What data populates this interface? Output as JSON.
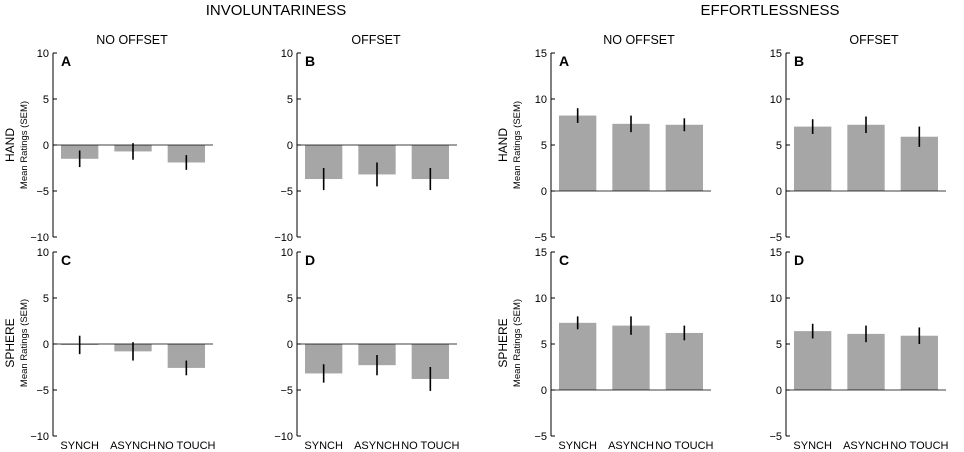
{
  "sections": [
    {
      "title": "INVOLUNTARINESS"
    },
    {
      "title": "EFFORTLESSNESS"
    }
  ],
  "column_labels": [
    "NO OFFSET",
    "OFFSET",
    "NO OFFSET",
    "OFFSET"
  ],
  "row_labels": [
    "HAND",
    "SPHERE"
  ],
  "ylabel": "Mean Ratings (SEM)",
  "chart_data": [
    {
      "type": "bar",
      "section": "INVOLUNTARINESS",
      "column": "NO OFFSET",
      "row": "HAND",
      "letter": "A",
      "categories": [
        "SYNCH",
        "ASYNCH",
        "NO TOUCH"
      ],
      "values": [
        -1.5,
        -0.7,
        -1.9
      ],
      "errors": [
        0.9,
        0.9,
        0.8
      ],
      "ylim": [
        -10,
        10
      ],
      "yticks": [
        -10,
        -5,
        0,
        5,
        10
      ],
      "show_xticklabels": false
    },
    {
      "type": "bar",
      "section": "INVOLUNTARINESS",
      "column": "OFFSET",
      "row": "HAND",
      "letter": "B",
      "categories": [
        "SYNCH",
        "ASYNCH",
        "NO TOUCH"
      ],
      "values": [
        -3.7,
        -3.2,
        -3.7
      ],
      "errors": [
        1.2,
        1.3,
        1.2
      ],
      "ylim": [
        -10,
        10
      ],
      "yticks": [
        -10,
        -5,
        0,
        5,
        10
      ],
      "show_xticklabels": false
    },
    {
      "type": "bar",
      "section": "EFFORTLESSNESS",
      "column": "NO OFFSET",
      "row": "HAND",
      "letter": "A",
      "categories": [
        "SYNCH",
        "ASYNCH",
        "NO TOUCH"
      ],
      "values": [
        8.2,
        7.3,
        7.2
      ],
      "errors": [
        0.8,
        0.9,
        0.7
      ],
      "ylim": [
        -5,
        15
      ],
      "yticks": [
        -5,
        0,
        5,
        10,
        15
      ],
      "show_xticklabels": false
    },
    {
      "type": "bar",
      "section": "EFFORTLESSNESS",
      "column": "OFFSET",
      "row": "HAND",
      "letter": "B",
      "categories": [
        "SYNCH",
        "ASYNCH",
        "NO TOUCH"
      ],
      "values": [
        7.0,
        7.2,
        5.9
      ],
      "errors": [
        0.8,
        0.9,
        1.1
      ],
      "ylim": [
        -5,
        15
      ],
      "yticks": [
        -5,
        0,
        5,
        10,
        15
      ],
      "show_xticklabels": false
    },
    {
      "type": "bar",
      "section": "INVOLUNTARINESS",
      "column": "NO OFFSET",
      "row": "SPHERE",
      "letter": "C",
      "categories": [
        "SYNCH",
        "ASYNCH",
        "NO TOUCH"
      ],
      "values": [
        -0.1,
        -0.8,
        -2.6
      ],
      "errors": [
        1.0,
        1.0,
        0.8
      ],
      "ylim": [
        -10,
        10
      ],
      "yticks": [
        -10,
        -5,
        0,
        5,
        10
      ],
      "show_xticklabels": true
    },
    {
      "type": "bar",
      "section": "INVOLUNTARINESS",
      "column": "OFFSET",
      "row": "SPHERE",
      "letter": "D",
      "categories": [
        "SYNCH",
        "ASYNCH",
        "NO TOUCH"
      ],
      "values": [
        -3.2,
        -2.3,
        -3.8
      ],
      "errors": [
        1.0,
        1.1,
        1.3
      ],
      "ylim": [
        -10,
        10
      ],
      "yticks": [
        -10,
        -5,
        0,
        5,
        10
      ],
      "show_xticklabels": true
    },
    {
      "type": "bar",
      "section": "EFFORTLESSNESS",
      "column": "NO OFFSET",
      "row": "SPHERE",
      "letter": "C",
      "categories": [
        "SYNCH",
        "ASYNCH",
        "NO TOUCH"
      ],
      "values": [
        7.3,
        7.0,
        6.2
      ],
      "errors": [
        0.7,
        1.0,
        0.8
      ],
      "ylim": [
        -5,
        15
      ],
      "yticks": [
        -5,
        0,
        5,
        10,
        15
      ],
      "show_xticklabels": true
    },
    {
      "type": "bar",
      "section": "EFFORTLESSNESS",
      "column": "OFFSET",
      "row": "SPHERE",
      "letter": "D",
      "categories": [
        "SYNCH",
        "ASYNCH",
        "NO TOUCH"
      ],
      "values": [
        6.4,
        6.1,
        5.9
      ],
      "errors": [
        0.8,
        0.9,
        0.9
      ],
      "ylim": [
        -5,
        15
      ],
      "yticks": [
        -5,
        0,
        5,
        10,
        15
      ],
      "show_xticklabels": true
    }
  ],
  "colors": {
    "bar": "#a6a6a6",
    "error": "#000000",
    "axis": "#000000"
  }
}
